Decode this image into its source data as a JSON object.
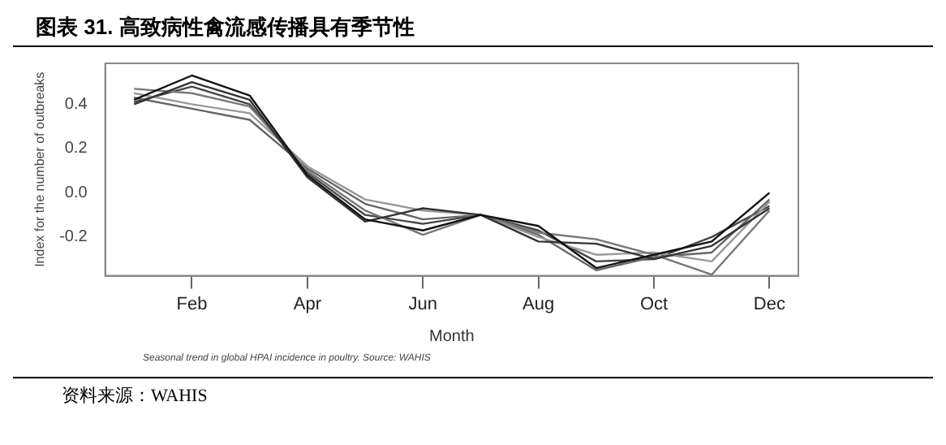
{
  "chart_data": {
    "type": "line",
    "title": "图表 31. 高致病性禽流感传播具有季节性",
    "xlabel": "Month",
    "ylabel": "Index for the number of outbreaks",
    "annotations": [
      "Seasonal trend in global HPAI incidence in poultry. Source: WAHIS",
      "资料来源：WAHIS"
    ],
    "categories": [
      null,
      "Feb",
      null,
      "Apr",
      null,
      "Jun",
      null,
      "Aug",
      null,
      "Oct",
      null,
      "Dec"
    ],
    "series": [
      {
        "color": "#111111",
        "values": [
          0.42,
          0.53,
          0.44,
          0.08,
          -0.12,
          -0.17,
          -0.1,
          -0.15,
          -0.34,
          -0.28,
          -0.22,
          0.0
        ]
      },
      {
        "color": "#333333",
        "values": [
          0.4,
          0.5,
          0.42,
          0.07,
          -0.13,
          -0.07,
          -0.1,
          -0.22,
          -0.23,
          -0.3,
          -0.24,
          -0.07
        ]
      },
      {
        "color": "#777777",
        "values": [
          0.47,
          0.45,
          0.39,
          0.1,
          -0.08,
          -0.19,
          -0.1,
          -0.18,
          -0.21,
          -0.28,
          -0.37,
          -0.08
        ]
      },
      {
        "color": "#999999",
        "values": [
          0.45,
          0.4,
          0.36,
          0.12,
          -0.03,
          -0.08,
          -0.1,
          -0.2,
          -0.28,
          -0.27,
          -0.31,
          -0.04
        ]
      },
      {
        "color": "#666666",
        "values": [
          0.43,
          0.38,
          0.33,
          0.11,
          -0.05,
          -0.12,
          -0.1,
          -0.19,
          -0.35,
          -0.29,
          -0.27,
          -0.03
        ]
      },
      {
        "color": "#444444",
        "values": [
          0.41,
          0.48,
          0.4,
          0.09,
          -0.1,
          -0.14,
          -0.1,
          -0.17,
          -0.31,
          -0.3,
          -0.2,
          -0.06
        ]
      }
    ],
    "ylim": [
      -0.375,
      0.585
    ],
    "yticks": [
      {
        "value": -0.2,
        "label": "-0.2"
      },
      {
        "value": 0,
        "label": "0.0"
      },
      {
        "value": 0.2,
        "label": "0.2"
      },
      {
        "value": 0.4,
        "label": "0.4"
      }
    ],
    "grid": false,
    "legend": false,
    "marker": "none",
    "line_style": "solid"
  }
}
